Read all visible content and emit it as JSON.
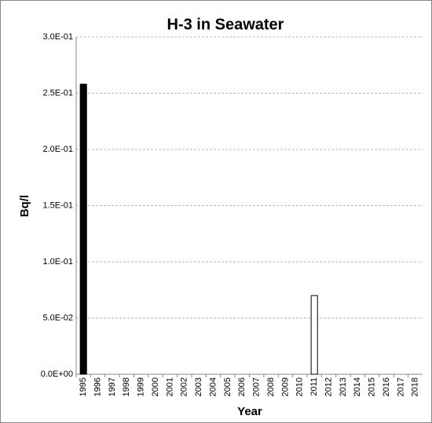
{
  "chart_data": {
    "type": "bar",
    "title": "H-3 in Seawater",
    "x_label": "Year",
    "y_label": "Bq/l",
    "categories": [
      "1995",
      "1996",
      "1997",
      "1998",
      "1999",
      "2000",
      "2001",
      "2002",
      "2003",
      "2004",
      "2005",
      "2006",
      "2007",
      "2008",
      "2009",
      "2010",
      "2011",
      "2012",
      "2013",
      "2014",
      "2015",
      "2016",
      "2017",
      "2018"
    ],
    "values": [
      0.258,
      null,
      null,
      null,
      null,
      null,
      null,
      null,
      null,
      null,
      null,
      null,
      null,
      null,
      null,
      null,
      0.07,
      null,
      null,
      null,
      null,
      null,
      null,
      null
    ],
    "colors": [
      "#000000",
      null,
      null,
      null,
      null,
      null,
      null,
      null,
      null,
      null,
      null,
      null,
      null,
      null,
      null,
      null,
      "#ffffff",
      null,
      null,
      null,
      null,
      null,
      null,
      null
    ],
    "ylim": [
      0,
      0.3
    ],
    "yticks": [
      {
        "value": 0,
        "label": "0.0E+00"
      },
      {
        "value": 0.05,
        "label": "5.0E-02"
      },
      {
        "value": 0.1,
        "label": "1.0E-01"
      },
      {
        "value": 0.15,
        "label": "1.5E-01"
      },
      {
        "value": 0.2,
        "label": "2.0E-01"
      },
      {
        "value": 0.25,
        "label": "2.5E-01"
      },
      {
        "value": 0.3,
        "label": "3.0E-01"
      }
    ],
    "grid": true
  }
}
